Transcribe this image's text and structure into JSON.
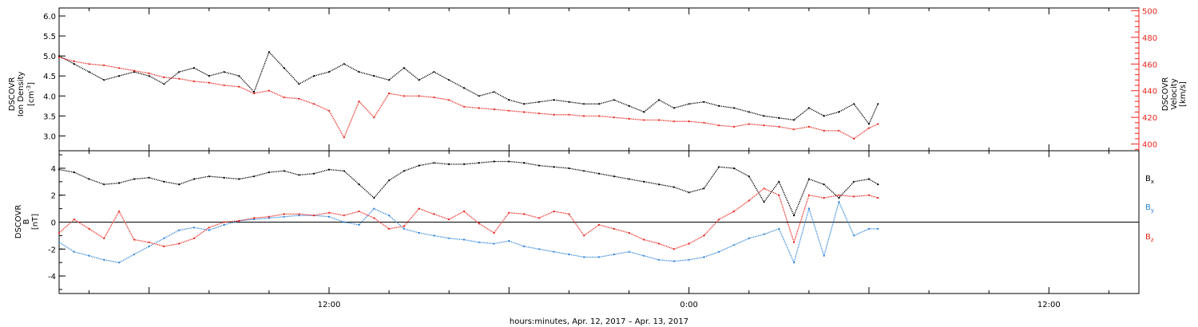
{
  "chart_data": [
    {
      "type": "line",
      "panel": "top",
      "ylabel_left": [
        "DSCOVR",
        "Ion Density"
      ],
      "ylabel_left_units": "[cm",
      "ylabel_left_units_sup": "-3",
      "ylabel_left_units_close": "]",
      "ylabel_right": [
        "DSCOVR",
        "Velocity",
        "[km/s]"
      ],
      "xlim": [
        -3,
        33
      ],
      "ylim_left": [
        2.63,
        6.2
      ],
      "ylim_right": [
        395,
        502
      ],
      "yticks_left": [
        "3.0",
        "3.5",
        "4.0",
        "4.5",
        "5.0",
        "5.5",
        "6.0"
      ],
      "yticks_right": [
        "400",
        "420",
        "440",
        "460",
        "480",
        "500"
      ],
      "colors": {
        "density": "#000000",
        "velocity": "#e8251e"
      },
      "series": [
        {
          "name": "density",
          "axis": "left",
          "x": [
            -3,
            -2.5,
            -2,
            -1.5,
            -1,
            -0.5,
            0,
            0.5,
            1,
            1.5,
            2,
            2.5,
            3,
            3.5,
            4,
            4.5,
            5,
            5.5,
            6,
            6.5,
            7,
            7.5,
            8,
            8.5,
            9,
            9.5,
            10,
            10.5,
            11,
            11.5,
            12,
            12.5,
            13,
            13.5,
            14,
            14.5,
            15,
            15.5,
            16,
            16.5,
            17,
            17.5,
            18,
            18.5,
            19,
            19.5,
            20,
            20.5,
            21,
            21.5,
            22,
            22.5,
            23,
            23.5,
            24,
            24.3
          ],
          "y": [
            5.0,
            4.8,
            4.6,
            4.4,
            4.5,
            4.6,
            4.5,
            4.3,
            4.6,
            4.7,
            4.5,
            4.6,
            4.5,
            4.1,
            5.1,
            4.7,
            4.3,
            4.5,
            4.6,
            4.8,
            4.6,
            4.5,
            4.4,
            4.7,
            4.4,
            4.6,
            4.4,
            4.2,
            4.0,
            4.1,
            3.9,
            3.8,
            3.85,
            3.9,
            3.85,
            3.8,
            3.8,
            3.9,
            3.75,
            3.6,
            3.9,
            3.7,
            3.8,
            3.85,
            3.75,
            3.7,
            3.6,
            3.5,
            3.45,
            3.4,
            3.7,
            3.5,
            3.6,
            3.8,
            3.3,
            3.8
          ]
        },
        {
          "name": "velocity",
          "axis": "right",
          "x": [
            -3,
            -2.5,
            -2,
            -1.5,
            -1,
            -0.5,
            0,
            0.5,
            1,
            1.5,
            2,
            2.5,
            3,
            3.5,
            4,
            4.5,
            5,
            5.5,
            6,
            6.5,
            7,
            7.5,
            8,
            8.5,
            9,
            9.5,
            10,
            10.5,
            11,
            11.5,
            12,
            12.5,
            13,
            13.5,
            14,
            14.5,
            15,
            15.5,
            16,
            16.5,
            17,
            17.5,
            18,
            18.5,
            19,
            19.5,
            20,
            20.5,
            21,
            21.5,
            22,
            22.5,
            23,
            23.5,
            24,
            24.3
          ],
          "y": [
            465,
            462,
            460,
            459,
            457,
            455,
            453,
            450,
            449,
            447,
            446,
            444,
            443,
            438,
            440,
            435,
            434,
            430,
            425,
            405,
            432,
            420,
            438,
            436,
            436,
            435,
            433,
            428,
            427,
            426,
            425,
            424,
            423,
            422,
            422,
            421,
            421,
            420,
            419,
            418,
            418,
            417,
            417,
            416,
            414,
            413,
            415,
            414,
            413,
            411,
            413,
            410,
            410,
            404,
            412,
            415
          ]
        }
      ]
    },
    {
      "type": "line",
      "panel": "bottom",
      "ylabel": [
        "DSCOVR",
        "B",
        "[nT]"
      ],
      "xlabel": "hours:minutes, Apr. 12, 2017 – Apr. 13, 2017",
      "xlim": [
        -3,
        33
      ],
      "ylim": [
        -5.3,
        5.3
      ],
      "yticks": [
        "-4",
        "-2",
        "0",
        "2",
        "4"
      ],
      "xticks": [
        "12:00",
        "0:00",
        "12:00"
      ],
      "zero_line": true,
      "colors": {
        "Bx": "#000000",
        "By": "#2f84d8",
        "Bz": "#e8251e"
      },
      "legend": [
        {
          "base": "B",
          "sub": "x",
          "color": "#000000"
        },
        {
          "base": "B",
          "sub": "y",
          "color": "#2f84d8"
        },
        {
          "base": "B",
          "sub": "z",
          "color": "#e8251e"
        }
      ],
      "series": [
        {
          "name": "Bx",
          "x": [
            -3,
            -2.5,
            -2,
            -1.5,
            -1,
            -0.5,
            0,
            0.5,
            1,
            1.5,
            2,
            2.5,
            3,
            3.5,
            4,
            4.5,
            5,
            5.5,
            6,
            6.5,
            7,
            7.5,
            8,
            8.5,
            9,
            9.5,
            10,
            10.5,
            11,
            11.5,
            12,
            12.5,
            13,
            13.5,
            14,
            14.5,
            15,
            15.5,
            16,
            16.5,
            17,
            17.5,
            18,
            18.5,
            19,
            19.5,
            20,
            20.5,
            21,
            21.5,
            22,
            22.5,
            23,
            23.5,
            24,
            24.3
          ],
          "y": [
            3.9,
            3.7,
            3.2,
            2.8,
            2.9,
            3.2,
            3.3,
            3.0,
            2.8,
            3.2,
            3.4,
            3.3,
            3.2,
            3.4,
            3.7,
            3.8,
            3.5,
            3.6,
            3.9,
            3.8,
            2.8,
            1.8,
            3.1,
            3.8,
            4.2,
            4.4,
            4.3,
            4.3,
            4.4,
            4.5,
            4.5,
            4.4,
            4.2,
            4.1,
            4.0,
            3.8,
            3.6,
            3.4,
            3.2,
            3.0,
            2.8,
            2.6,
            2.2,
            2.5,
            4.1,
            4.0,
            3.4,
            1.5,
            3.0,
            0.5,
            3.2,
            2.8,
            1.8,
            3.0,
            3.2,
            2.8
          ]
        },
        {
          "name": "By",
          "x": [
            -3,
            -2.5,
            -2,
            -1.5,
            -1,
            -0.5,
            0,
            0.5,
            1,
            1.5,
            2,
            2.5,
            3,
            3.5,
            4,
            4.5,
            5,
            5.5,
            6,
            6.5,
            7,
            7.5,
            8,
            8.5,
            9,
            9.5,
            10,
            10.5,
            11,
            11.5,
            12,
            12.5,
            13,
            13.5,
            14,
            14.5,
            15,
            15.5,
            16,
            16.5,
            17,
            17.5,
            18,
            18.5,
            19,
            19.5,
            20,
            20.5,
            21,
            21.5,
            22,
            22.5,
            23,
            23.5,
            24,
            24.3
          ],
          "y": [
            -1.5,
            -2.2,
            -2.5,
            -2.8,
            -3.0,
            -2.4,
            -1.8,
            -1.2,
            -0.6,
            -0.4,
            -0.6,
            -0.2,
            0.1,
            0.2,
            0.3,
            0.4,
            0.5,
            0.5,
            0.4,
            0.0,
            -0.2,
            1.0,
            0.5,
            -0.5,
            -0.8,
            -1.0,
            -1.2,
            -1.3,
            -1.5,
            -1.6,
            -1.4,
            -1.8,
            -2.0,
            -2.2,
            -2.4,
            -2.6,
            -2.6,
            -2.4,
            -2.2,
            -2.5,
            -2.8,
            -2.9,
            -2.8,
            -2.6,
            -2.2,
            -1.7,
            -1.2,
            -0.9,
            -0.5,
            -3.0,
            1.0,
            -2.5,
            1.5,
            -1.0,
            -0.5,
            -0.5
          ]
        },
        {
          "name": "Bz",
          "x": [
            -3,
            -2.5,
            -2,
            -1.5,
            -1,
            -0.5,
            0,
            0.5,
            1,
            1.5,
            2,
            2.5,
            3,
            3.5,
            4,
            4.5,
            5,
            5.5,
            6,
            6.5,
            7,
            7.5,
            8,
            8.5,
            9,
            9.5,
            10,
            10.5,
            11,
            11.5,
            12,
            12.5,
            13,
            13.5,
            14,
            14.5,
            15,
            15.5,
            16,
            16.5,
            17,
            17.5,
            18,
            18.5,
            19,
            19.5,
            20,
            20.5,
            21,
            21.5,
            22,
            22.5,
            23,
            23.5,
            24,
            24.3
          ],
          "y": [
            -0.8,
            0.2,
            -0.5,
            -1.2,
            0.8,
            -1.3,
            -1.5,
            -1.8,
            -1.6,
            -1.2,
            -0.4,
            0.0,
            0.1,
            0.3,
            0.4,
            0.6,
            0.6,
            0.5,
            0.7,
            0.5,
            0.8,
            0.3,
            -0.5,
            -0.3,
            1.0,
            0.6,
            0.2,
            0.8,
            -0.1,
            -0.8,
            0.7,
            0.6,
            0.3,
            0.8,
            0.6,
            -1.0,
            -0.2,
            -0.5,
            -0.8,
            -1.3,
            -1.6,
            -2.0,
            -1.6,
            -1.0,
            0.2,
            0.8,
            1.6,
            2.5,
            2.0,
            -1.5,
            2.0,
            1.8,
            2.0,
            1.9,
            2.0,
            1.8
          ]
        }
      ]
    }
  ]
}
